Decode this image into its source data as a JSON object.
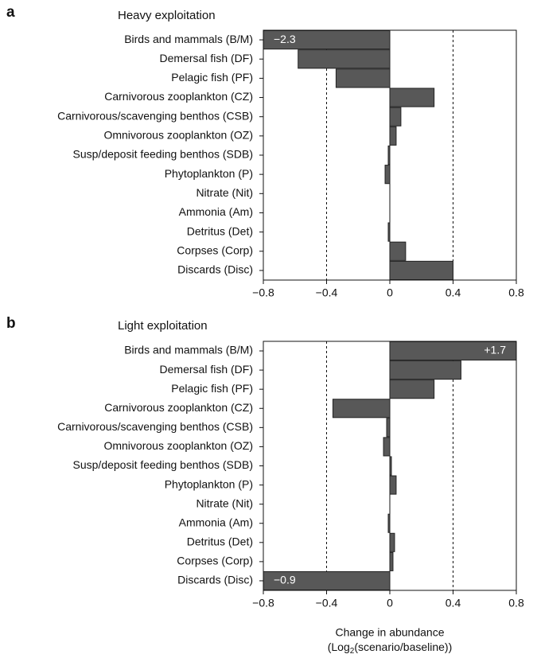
{
  "chart_data": [
    {
      "type": "barh",
      "panel": "a",
      "title": "Heavy exploitation",
      "categories": [
        "Birds and mammals (B/M)",
        "Demersal fish (DF)",
        "Pelagic fish (PF)",
        "Carnivorous zooplankton (CZ)",
        "Carnivorous/scavenging benthos (CSB)",
        "Omnivorous zooplankton (OZ)",
        "Susp/deposit feeding benthos (SDB)",
        "Phytoplankton (P)",
        "Nitrate (Nit)",
        "Ammonia (Am)",
        "Detritus (Det)",
        "Corpses (Corp)",
        "Discards (Disc)"
      ],
      "values": [
        -2.3,
        -0.58,
        -0.34,
        0.28,
        0.07,
        0.04,
        -0.01,
        -0.03,
        0,
        0,
        -0.01,
        0.1,
        0.4
      ],
      "value_labels": [
        "−2.3",
        null,
        null,
        null,
        null,
        null,
        null,
        null,
        null,
        null,
        null,
        null,
        null
      ],
      "color": "#585858",
      "xlim": [
        -0.8,
        0.8
      ],
      "xticks": [
        {
          "value": -0.8,
          "label": "−0.8"
        },
        {
          "value": -0.4,
          "label": "−0.4"
        },
        0,
        0.4,
        0.8
      ],
      "grid": true
    },
    {
      "type": "barh",
      "panel": "b",
      "title": "Light exploitation",
      "categories": [
        "Birds and mammals (B/M)",
        "Demersal fish (DF)",
        "Pelagic fish (PF)",
        "Carnivorous zooplankton (CZ)",
        "Carnivorous/scavenging benthos (CSB)",
        "Omnivorous zooplankton (OZ)",
        "Susp/deposit feeding benthos (SDB)",
        "Phytoplankton (P)",
        "Nitrate (Nit)",
        "Ammonia (Am)",
        "Detritus (Det)",
        "Corpses (Corp)",
        "Discards (Disc)"
      ],
      "values": [
        1.7,
        0.45,
        0.28,
        -0.36,
        -0.02,
        -0.04,
        0.01,
        0.04,
        0,
        -0.01,
        0.03,
        0.02,
        -0.9
      ],
      "value_labels": [
        "+1.7",
        null,
        null,
        null,
        null,
        null,
        null,
        null,
        null,
        null,
        null,
        null,
        "−0.9"
      ],
      "color": "#585858",
      "xlim": [
        -0.8,
        0.8
      ],
      "xticks": [
        {
          "value": -0.8,
          "label": "−0.8"
        },
        {
          "value": -0.4,
          "label": "−0.4"
        },
        0,
        0.4,
        0.8
      ],
      "grid": true,
      "xlabel": [
        "Change in abundance",
        [
          "(Log",
          "2",
          "(scenario/baseline))"
        ]
      ]
    }
  ]
}
